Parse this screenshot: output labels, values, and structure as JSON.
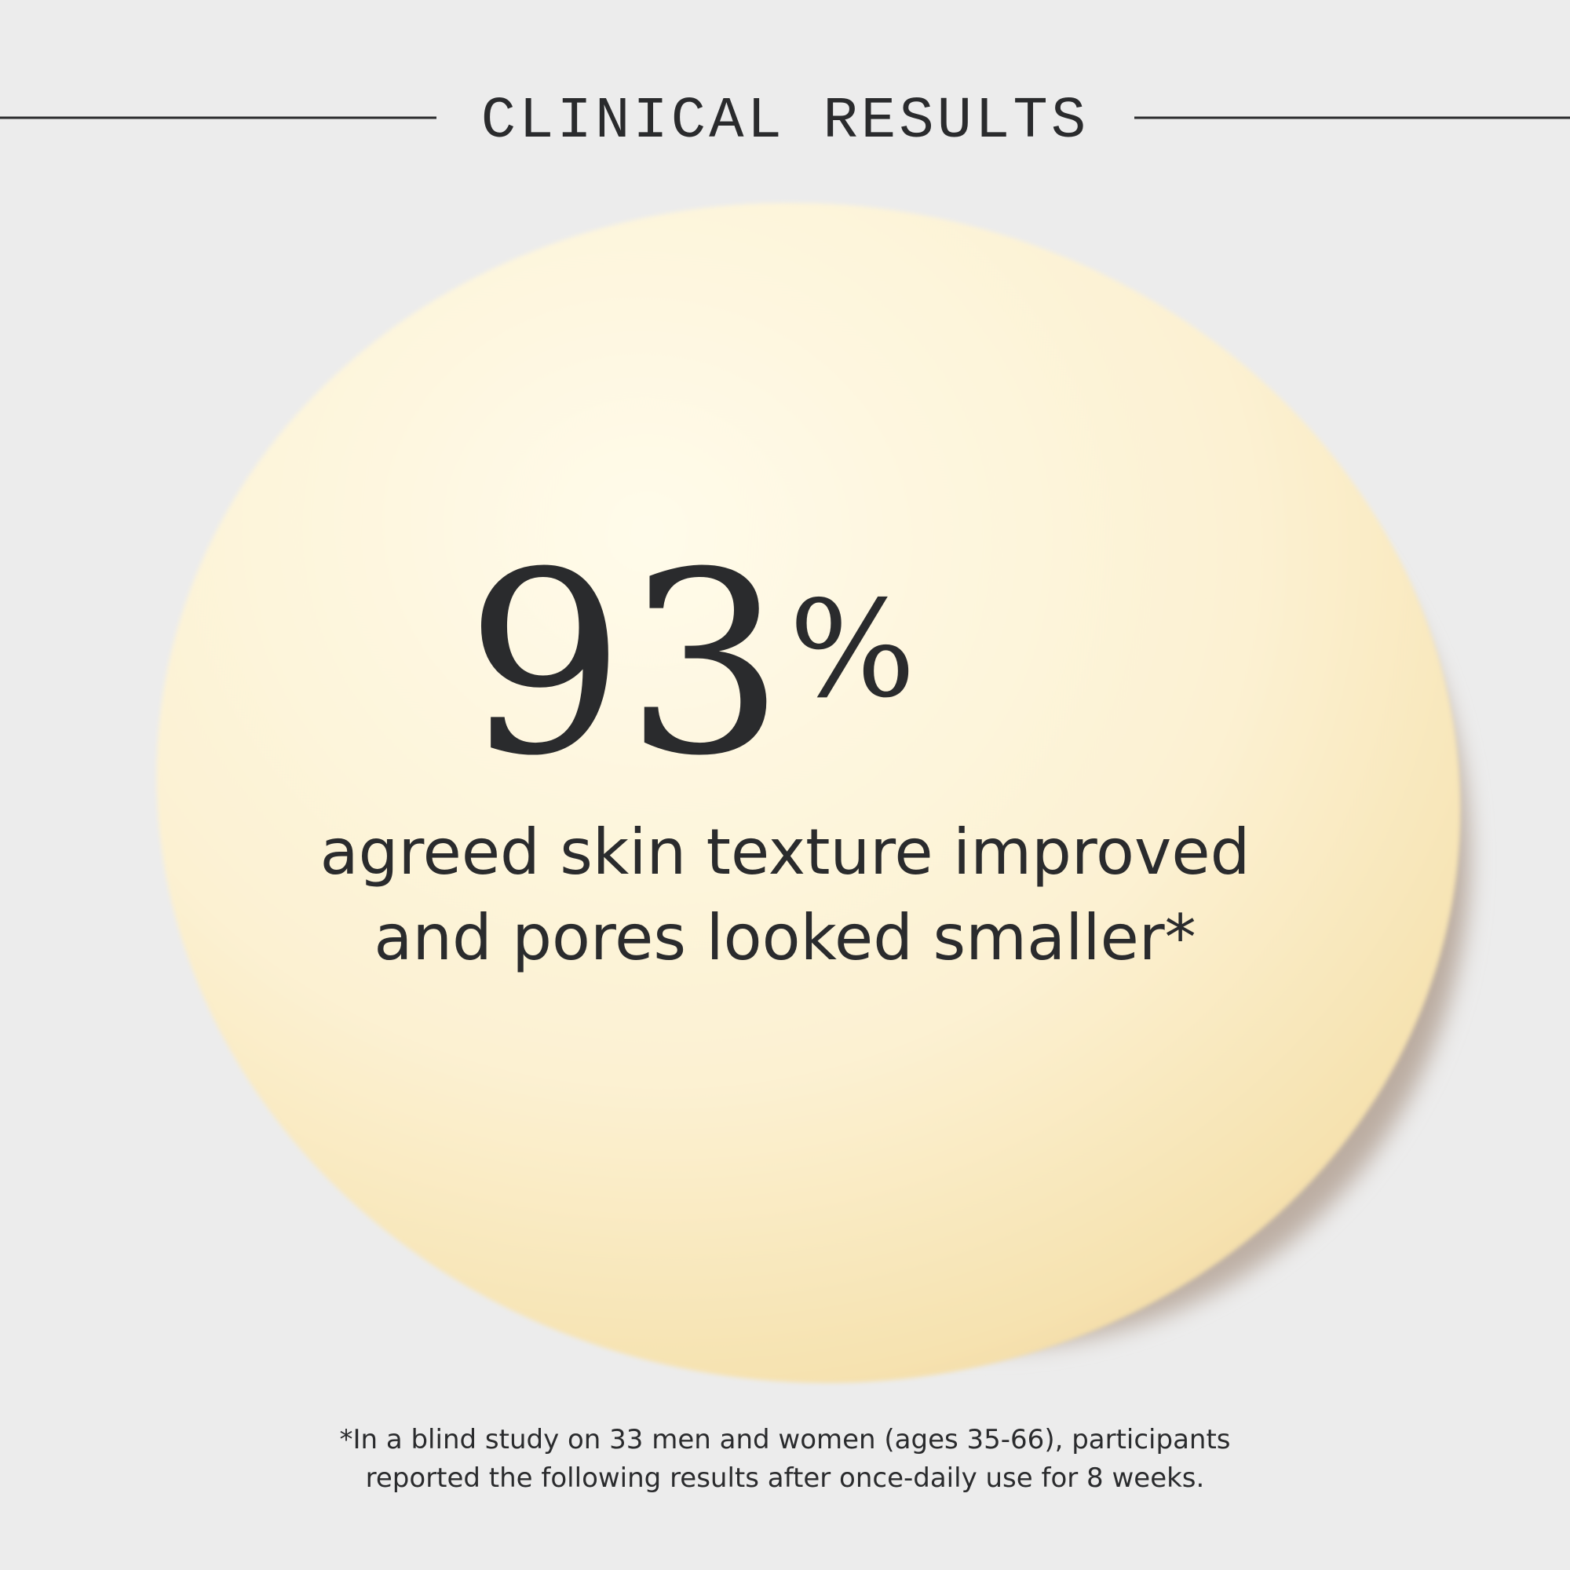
{
  "header": {
    "title": "CLINICAL RESULTS"
  },
  "stat": {
    "value": "93",
    "unit": "%",
    "lines": [
      "agreed skin texture improved",
      "and pores looked smaller*"
    ]
  },
  "footnote": {
    "lines": [
      "*In a blind study on 33 men and women (ages 35-66), participants",
      "reported the following results after once-daily use for 8 weeks."
    ]
  }
}
